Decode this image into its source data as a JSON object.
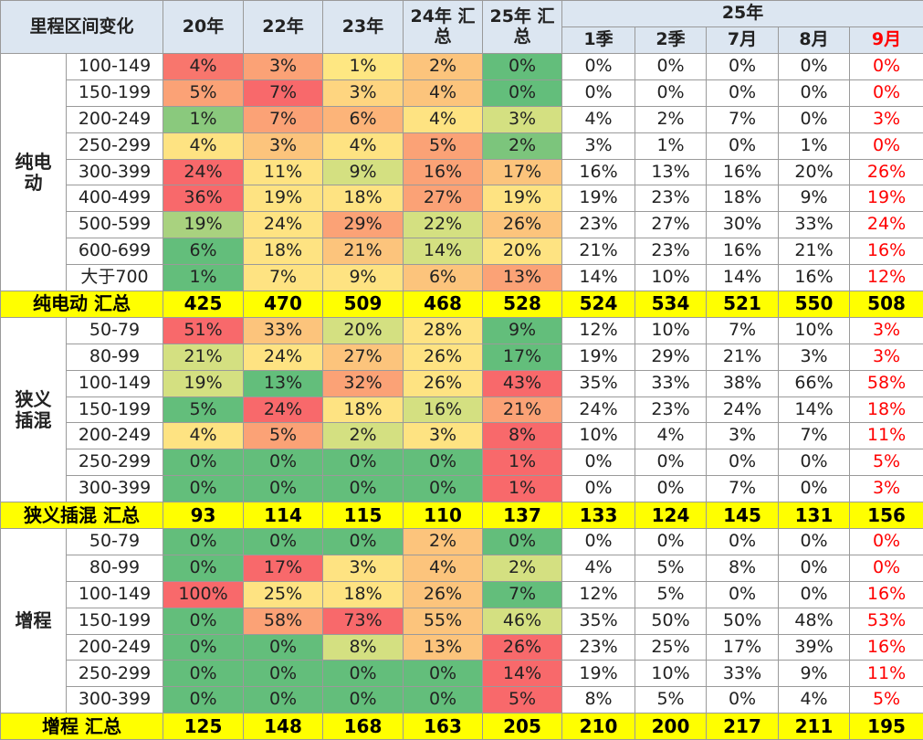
{
  "header": {
    "title": "里程区间变化",
    "columns": [
      "20年",
      "22年",
      "23年",
      "24年 汇总",
      "25年 汇总"
    ],
    "group": "25年",
    "sub_columns": [
      "1季",
      "2季",
      "7月",
      "8月",
      "9月"
    ],
    "highlight_color": "#ff0000"
  },
  "groups": [
    {
      "label": "纯电动",
      "rows": [
        {
          "range": "100-149",
          "values": [
            "4%",
            "3%",
            "1%",
            "2%",
            "0%",
            "0%",
            "0%",
            "0%",
            "0%",
            "0%"
          ],
          "colors": [
            "#f8766d",
            "#fba276",
            "#fee782",
            "#fcc47c",
            "#63be7b"
          ]
        },
        {
          "range": "150-199",
          "values": [
            "5%",
            "7%",
            "3%",
            "4%",
            "0%",
            "0%",
            "0%",
            "0%",
            "0%",
            "0%"
          ],
          "colors": [
            "#fba276",
            "#f8696b",
            "#fed580",
            "#fcc47c",
            "#63be7b"
          ]
        },
        {
          "range": "200-249",
          "values": [
            "1%",
            "7%",
            "6%",
            "4%",
            "3%",
            "4%",
            "2%",
            "7%",
            "0%",
            "3%"
          ],
          "colors": [
            "#8ac97d",
            "#fba276",
            "#fcb479",
            "#fee382",
            "#d4e081"
          ]
        },
        {
          "range": "250-299",
          "values": [
            "4%",
            "3%",
            "4%",
            "5%",
            "2%",
            "3%",
            "1%",
            "0%",
            "1%",
            "0%"
          ],
          "colors": [
            "#fee382",
            "#fcc47c",
            "#fee382",
            "#fba276",
            "#7cc57c"
          ]
        },
        {
          "range": "300-399",
          "values": [
            "24%",
            "11%",
            "9%",
            "16%",
            "17%",
            "16%",
            "13%",
            "16%",
            "20%",
            "26%"
          ],
          "colors": [
            "#f8696b",
            "#fee382",
            "#d4e081",
            "#fba276",
            "#fcc47c"
          ]
        },
        {
          "range": "400-499",
          "values": [
            "36%",
            "19%",
            "18%",
            "27%",
            "19%",
            "19%",
            "23%",
            "18%",
            "9%",
            "19%"
          ],
          "colors": [
            "#f8696b",
            "#fee382",
            "#fee382",
            "#fba276",
            "#fee382"
          ]
        },
        {
          "range": "500-599",
          "values": [
            "19%",
            "24%",
            "29%",
            "22%",
            "26%",
            "23%",
            "27%",
            "30%",
            "33%",
            "24%"
          ],
          "colors": [
            "#a9d27f",
            "#fee382",
            "#fba276",
            "#d4e081",
            "#fcc47c"
          ]
        },
        {
          "range": "600-699",
          "values": [
            "6%",
            "18%",
            "21%",
            "14%",
            "20%",
            "21%",
            "23%",
            "16%",
            "21%",
            "16%"
          ],
          "colors": [
            "#63be7b",
            "#fee382",
            "#fcc47c",
            "#d4e081",
            "#fee382"
          ]
        },
        {
          "range": "大于700",
          "values": [
            "1%",
            "7%",
            "9%",
            "6%",
            "13%",
            "14%",
            "10%",
            "14%",
            "16%",
            "12%"
          ],
          "colors": [
            "#63be7b",
            "#fee382",
            "#fee382",
            "#fcc47c",
            "#fba276"
          ]
        }
      ],
      "total": {
        "label": "纯电动 汇总",
        "values": [
          "425",
          "470",
          "509",
          "468",
          "528",
          "524",
          "534",
          "521",
          "550",
          "508"
        ]
      }
    },
    {
      "label": "狭义插混",
      "rows": [
        {
          "range": "50-79",
          "values": [
            "51%",
            "33%",
            "20%",
            "28%",
            "9%",
            "12%",
            "10%",
            "7%",
            "10%",
            "3%"
          ],
          "colors": [
            "#f8696b",
            "#fcc47c",
            "#d4e081",
            "#fee382",
            "#63be7b"
          ]
        },
        {
          "range": "80-99",
          "values": [
            "21%",
            "24%",
            "27%",
            "26%",
            "17%",
            "19%",
            "29%",
            "21%",
            "3%",
            "3%"
          ],
          "colors": [
            "#d4e081",
            "#fee382",
            "#fcc47c",
            "#fee382",
            "#63be7b"
          ]
        },
        {
          "range": "100-149",
          "values": [
            "19%",
            "13%",
            "32%",
            "26%",
            "43%",
            "35%",
            "33%",
            "38%",
            "66%",
            "58%"
          ],
          "colors": [
            "#d4e081",
            "#63be7b",
            "#fba276",
            "#fee382",
            "#f8696b"
          ]
        },
        {
          "range": "150-199",
          "values": [
            "5%",
            "24%",
            "18%",
            "16%",
            "21%",
            "24%",
            "23%",
            "24%",
            "14%",
            "18%"
          ],
          "colors": [
            "#63be7b",
            "#f8696b",
            "#fee382",
            "#d4e081",
            "#fba276"
          ]
        },
        {
          "range": "200-249",
          "values": [
            "4%",
            "5%",
            "2%",
            "3%",
            "8%",
            "10%",
            "4%",
            "3%",
            "7%",
            "11%"
          ],
          "colors": [
            "#fee382",
            "#fba276",
            "#d4e081",
            "#fee382",
            "#f8696b"
          ]
        },
        {
          "range": "250-299",
          "values": [
            "0%",
            "0%",
            "0%",
            "0%",
            "1%",
            "0%",
            "0%",
            "0%",
            "0%",
            "5%"
          ],
          "colors": [
            "#63be7b",
            "#63be7b",
            "#63be7b",
            "#63be7b",
            "#f8696b"
          ]
        },
        {
          "range": "300-399",
          "values": [
            "0%",
            "0%",
            "0%",
            "0%",
            "1%",
            "0%",
            "0%",
            "7%",
            "0%",
            "3%"
          ],
          "colors": [
            "#63be7b",
            "#63be7b",
            "#63be7b",
            "#63be7b",
            "#f8696b"
          ]
        }
      ],
      "total": {
        "label": "狭义插混 汇总",
        "values": [
          "93",
          "114",
          "115",
          "110",
          "137",
          "133",
          "124",
          "145",
          "131",
          "156"
        ]
      }
    },
    {
      "label": "增程",
      "rows": [
        {
          "range": "50-79",
          "values": [
            "0%",
            "0%",
            "0%",
            "2%",
            "0%",
            "0%",
            "0%",
            "0%",
            "0%",
            "0%"
          ],
          "colors": [
            "#63be7b",
            "#63be7b",
            "#63be7b",
            "#fcc47c",
            "#63be7b"
          ]
        },
        {
          "range": "80-99",
          "values": [
            "0%",
            "17%",
            "3%",
            "4%",
            "2%",
            "4%",
            "5%",
            "8%",
            "0%",
            "0%"
          ],
          "colors": [
            "#63be7b",
            "#f8696b",
            "#fee382",
            "#fcc47c",
            "#d4e081"
          ]
        },
        {
          "range": "100-149",
          "values": [
            "100%",
            "25%",
            "18%",
            "26%",
            "7%",
            "12%",
            "5%",
            "0%",
            "0%",
            "16%"
          ],
          "colors": [
            "#f8696b",
            "#fee382",
            "#fee382",
            "#fcc47c",
            "#63be7b"
          ]
        },
        {
          "range": "150-199",
          "values": [
            "0%",
            "58%",
            "73%",
            "55%",
            "46%",
            "35%",
            "50%",
            "50%",
            "48%",
            "53%"
          ],
          "colors": [
            "#63be7b",
            "#fba276",
            "#f8696b",
            "#fcc47c",
            "#d4e081"
          ]
        },
        {
          "range": "200-249",
          "values": [
            "0%",
            "0%",
            "8%",
            "13%",
            "26%",
            "23%",
            "25%",
            "17%",
            "39%",
            "16%"
          ],
          "colors": [
            "#63be7b",
            "#63be7b",
            "#d4e081",
            "#fcc47c",
            "#f8696b"
          ]
        },
        {
          "range": "250-299",
          "values": [
            "0%",
            "0%",
            "0%",
            "0%",
            "14%",
            "19%",
            "10%",
            "33%",
            "9%",
            "11%"
          ],
          "colors": [
            "#63be7b",
            "#63be7b",
            "#63be7b",
            "#63be7b",
            "#f8696b"
          ]
        },
        {
          "range": "300-399",
          "values": [
            "0%",
            "0%",
            "0%",
            "0%",
            "5%",
            "8%",
            "5%",
            "0%",
            "4%",
            "5%"
          ],
          "colors": [
            "#63be7b",
            "#63be7b",
            "#63be7b",
            "#63be7b",
            "#f8696b"
          ]
        }
      ],
      "total": {
        "label": "增程 汇总",
        "values": [
          "125",
          "148",
          "168",
          "163",
          "205",
          "210",
          "200",
          "217",
          "211",
          "195"
        ]
      }
    }
  ]
}
